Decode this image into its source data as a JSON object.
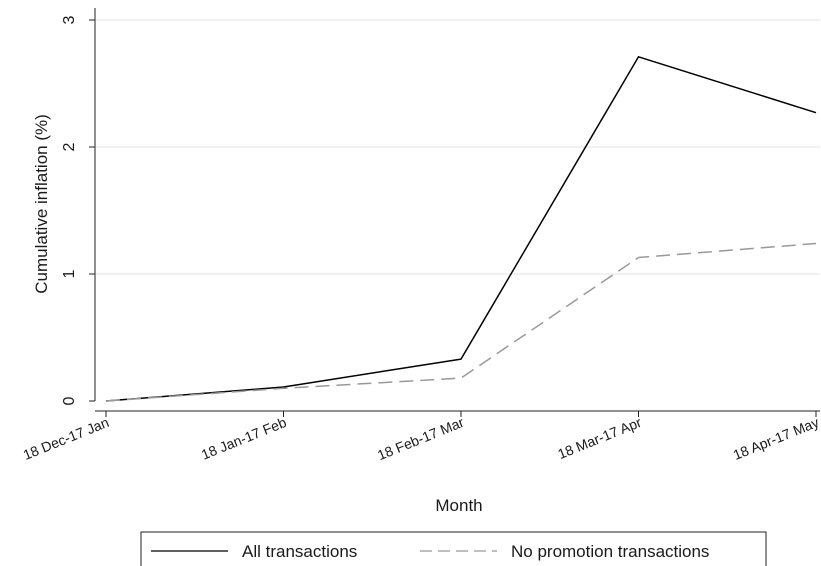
{
  "chart_data": {
    "type": "line",
    "title": "",
    "xlabel": "Month",
    "ylabel": "Cumulative inflation (%)",
    "categories": [
      "18 Dec-17 Jan",
      "18 Jan-17 Feb",
      "18 Feb-17 Mar",
      "18 Mar-17 Apr",
      "18 Apr-17 May"
    ],
    "ylim": [
      0,
      3
    ],
    "yticks": [
      0,
      1,
      2,
      3
    ],
    "grid": true,
    "legend_position": "bottom",
    "series": [
      {
        "name": "All transactions",
        "values": [
          0,
          0.11,
          0.33,
          2.71,
          2.27
        ],
        "color": "#000000",
        "dash": "solid"
      },
      {
        "name": "No promotion transactions",
        "values": [
          0,
          0.1,
          0.18,
          1.13,
          1.24
        ],
        "color": "#999999",
        "dash": "dashed"
      }
    ]
  }
}
